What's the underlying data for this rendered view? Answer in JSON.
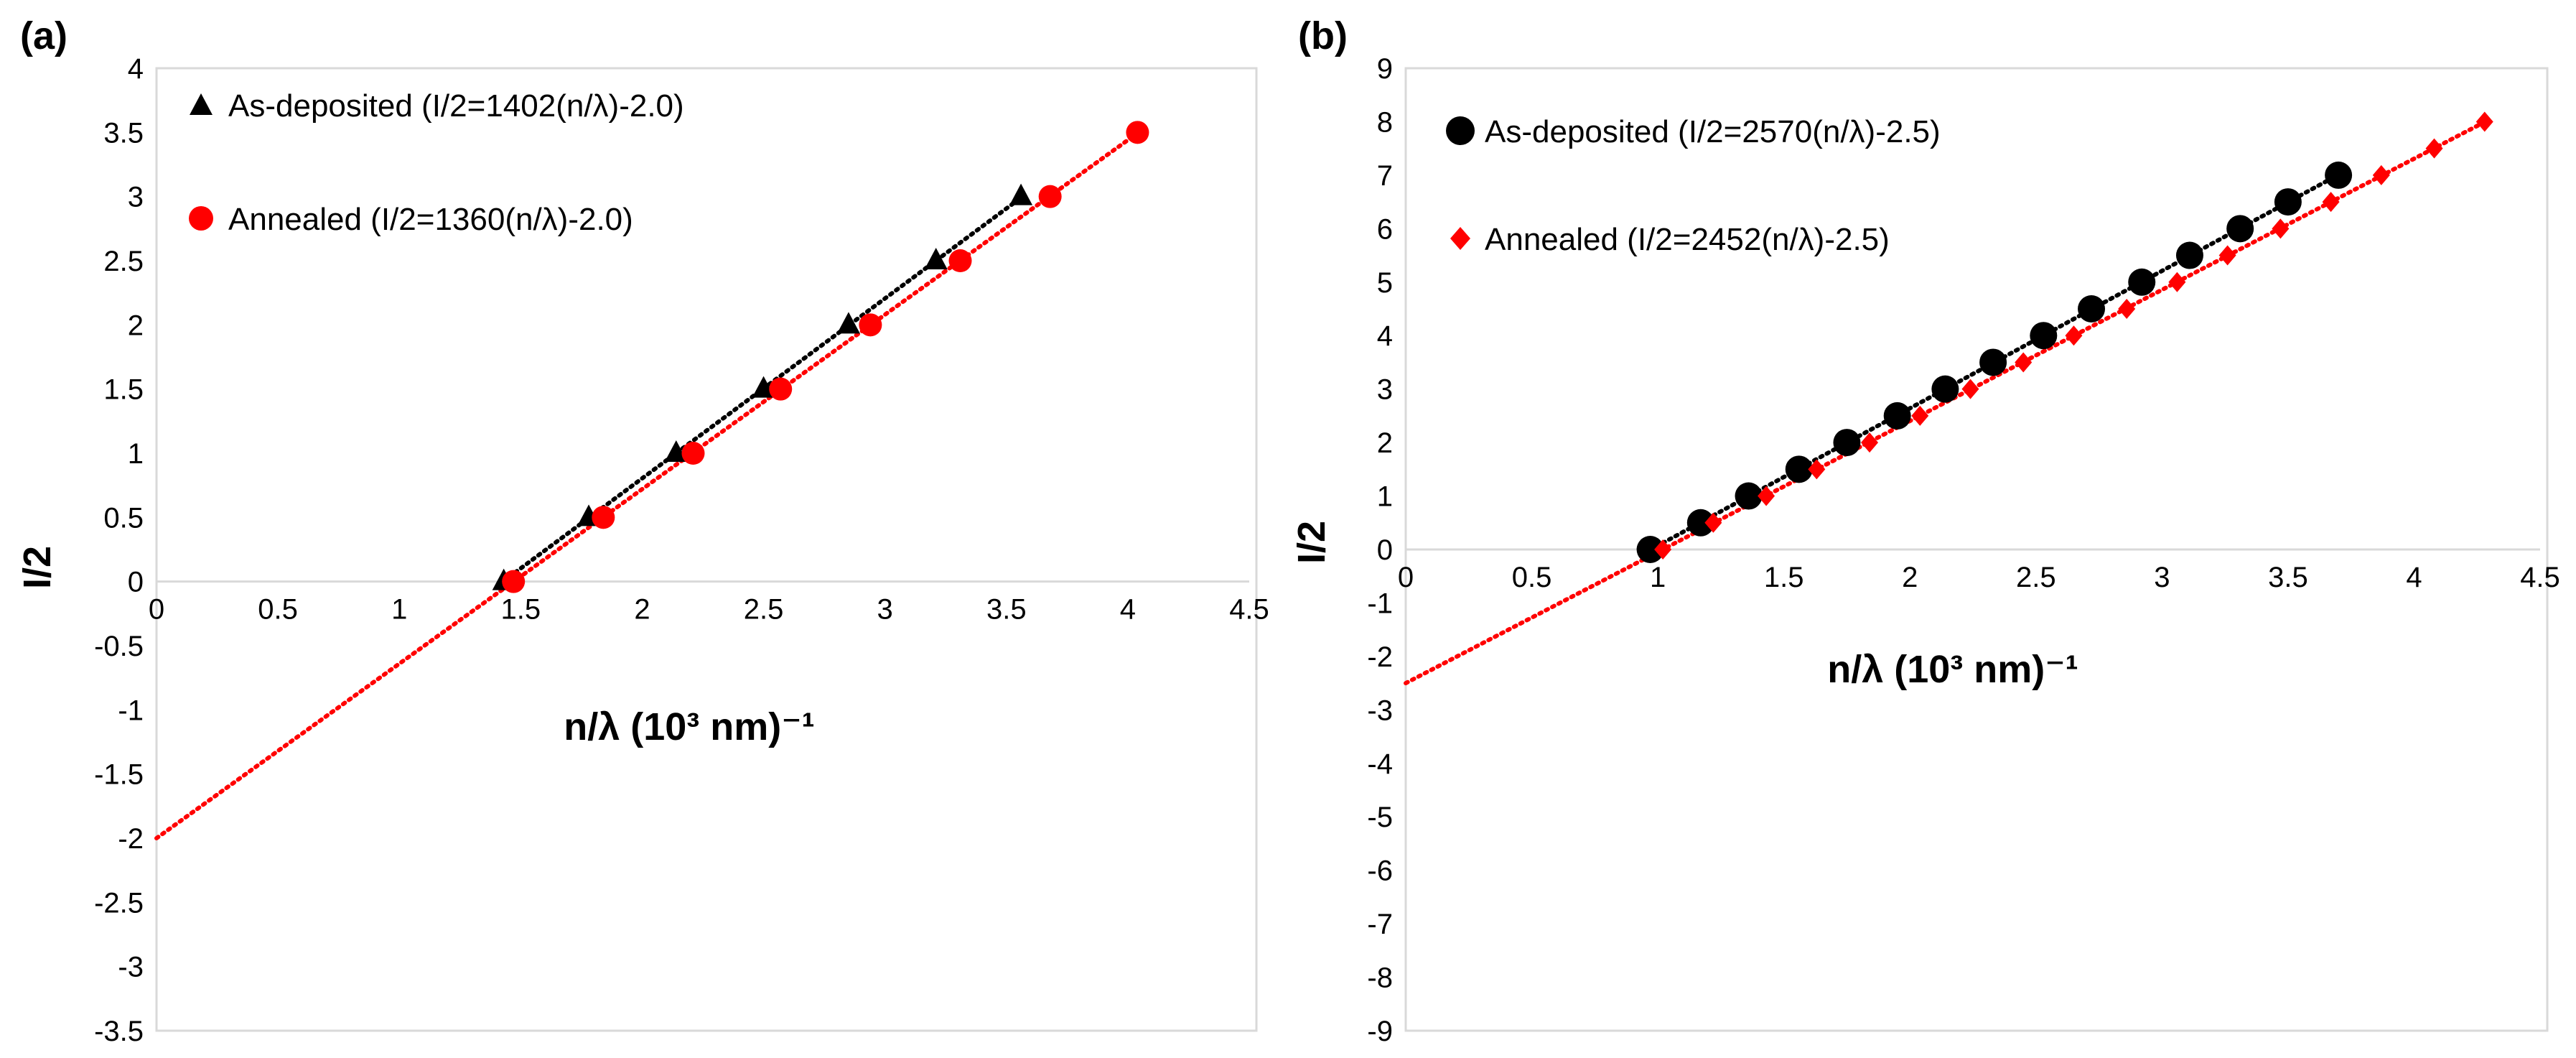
{
  "chart_data": [
    {
      "type": "scatter",
      "panel_label": "(a)",
      "xlabel": "n/λ (10³ nm)⁻¹",
      "ylabel": "I/2",
      "xlim": [
        0,
        4.5
      ],
      "ylim": [
        -3.5,
        4
      ],
      "xticks": [
        0,
        0.5,
        1,
        1.5,
        2,
        2.5,
        3,
        3.5,
        4,
        4.5
      ],
      "yticks": [
        -3.5,
        -3,
        -2.5,
        -2,
        -1.5,
        -1,
        -0.5,
        0,
        0.5,
        1,
        1.5,
        2,
        2.5,
        3,
        3.5,
        4
      ],
      "series": [
        {
          "name": "As-deposited (I/2=1402(n/λ)-2.0)",
          "marker": "triangle",
          "color": "#000000",
          "trendline": {
            "slope": 1.402,
            "intercept": -2.0,
            "x_range": [
              1.43,
              3.56
            ],
            "color": "#000000"
          },
          "points": [
            [
              1.43,
              0
            ],
            [
              1.78,
              0.5
            ],
            [
              2.14,
              1
            ],
            [
              2.5,
              1.5
            ],
            [
              2.85,
              2
            ],
            [
              3.21,
              2.5
            ],
            [
              3.56,
              3
            ]
          ]
        },
        {
          "name": "Annealed (I/2=1360(n/λ)-2.0)",
          "marker": "circle",
          "color": "#ff0000",
          "trendline": {
            "slope": 1.36,
            "intercept": -2.0,
            "x_range": [
              0,
              4.04
            ],
            "color": "#ff0000"
          },
          "points": [
            [
              1.47,
              0
            ],
            [
              1.84,
              0.5
            ],
            [
              2.21,
              1
            ],
            [
              2.57,
              1.5
            ],
            [
              2.94,
              2
            ],
            [
              3.31,
              2.5
            ],
            [
              3.68,
              3
            ],
            [
              4.04,
              3.5
            ]
          ]
        }
      ]
    },
    {
      "type": "scatter",
      "panel_label": "(b)",
      "xlabel": "n/λ (10³ nm)⁻¹",
      "ylabel": "I/2",
      "xlim": [
        0,
        4.5
      ],
      "ylim": [
        -9,
        9
      ],
      "xticks": [
        0,
        0.5,
        1,
        1.5,
        2,
        2.5,
        3,
        3.5,
        4,
        4.5
      ],
      "yticks": [
        -9,
        -8,
        -7,
        -6,
        -5,
        -4,
        -3,
        -2,
        -1,
        0,
        1,
        2,
        3,
        4,
        5,
        6,
        7,
        8,
        9
      ],
      "series": [
        {
          "name": "As-deposited (I/2=2570(n/λ)-2.5)",
          "marker": "circle",
          "color": "#000000",
          "trendline": {
            "slope": 2.57,
            "intercept": -2.5,
            "x_range": [
              0.97,
              3.7
            ],
            "color": "#000000"
          },
          "points": [
            [
              0.97,
              0
            ],
            [
              1.17,
              0.5
            ],
            [
              1.36,
              1
            ],
            [
              1.56,
              1.5
            ],
            [
              1.75,
              2
            ],
            [
              1.95,
              2.5
            ],
            [
              2.14,
              3
            ],
            [
              2.33,
              3.5
            ],
            [
              2.53,
              4
            ],
            [
              2.72,
              4.5
            ],
            [
              2.92,
              5
            ],
            [
              3.11,
              5.5
            ],
            [
              3.31,
              6
            ],
            [
              3.5,
              6.5
            ],
            [
              3.7,
              7
            ]
          ]
        },
        {
          "name": "Annealed (I/2=2452(n/λ)-2.5)",
          "marker": "diamond",
          "color": "#ff0000",
          "trendline": {
            "slope": 2.452,
            "intercept": -2.5,
            "x_range": [
              0,
              4.28
            ],
            "color": "#ff0000"
          },
          "points": [
            [
              1.02,
              0
            ],
            [
              1.22,
              0.5
            ],
            [
              1.43,
              1
            ],
            [
              1.63,
              1.5
            ],
            [
              1.84,
              2
            ],
            [
              2.04,
              2.5
            ],
            [
              2.24,
              3
            ],
            [
              2.45,
              3.5
            ],
            [
              2.65,
              4
            ],
            [
              2.86,
              4.5
            ],
            [
              3.06,
              5
            ],
            [
              3.26,
              5.5
            ],
            [
              3.47,
              6
            ],
            [
              3.67,
              6.5
            ],
            [
              3.87,
              7
            ],
            [
              4.08,
              7.5
            ],
            [
              4.28,
              8
            ]
          ]
        }
      ]
    }
  ]
}
